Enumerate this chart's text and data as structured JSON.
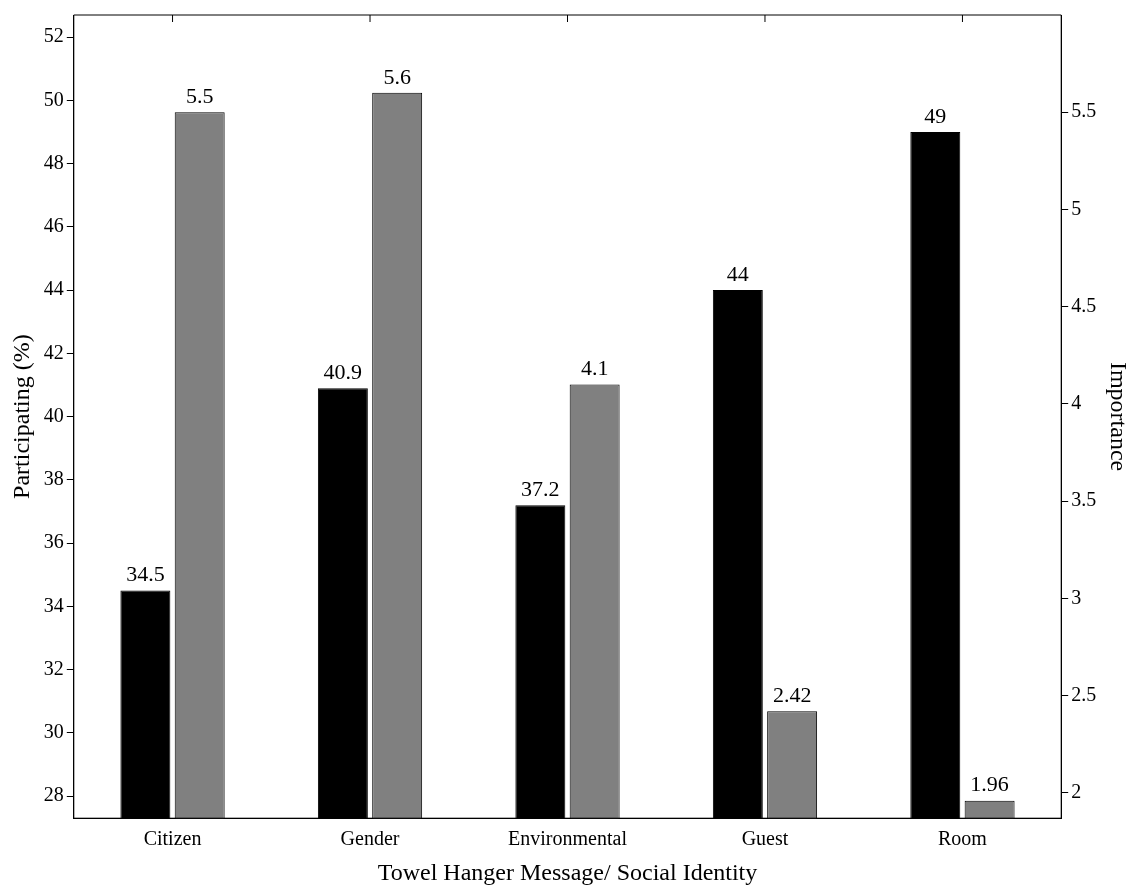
{
  "chart_data": {
    "type": "bar",
    "xlabel": "Towel Hanger Message/ Social Identity",
    "ylabel": "Participating (%)",
    "y2label": "Importance",
    "categories": [
      "Citizen",
      "Gender",
      "Environmental",
      "Guest",
      "Room"
    ],
    "series": [
      {
        "color": "#000000",
        "values": [
          34.5,
          40.9,
          37.2,
          44,
          49
        ]
      },
      {
        "color": "#808080",
        "values": [
          5.5,
          5.6,
          4.1,
          2.42,
          1.96
        ],
        "axis": "y2"
      }
    ],
    "ylim": [
      27.3,
      52.7
    ],
    "yticks": [
      28,
      30,
      32,
      34,
      36,
      38,
      40,
      42,
      44,
      46,
      48,
      50,
      52
    ],
    "y2lim": [
      1.87,
      6
    ],
    "y2ticks": [
      2,
      2.5,
      3,
      3.5,
      4,
      4.5,
      5,
      5.5
    ],
    "data_labels": true
  }
}
